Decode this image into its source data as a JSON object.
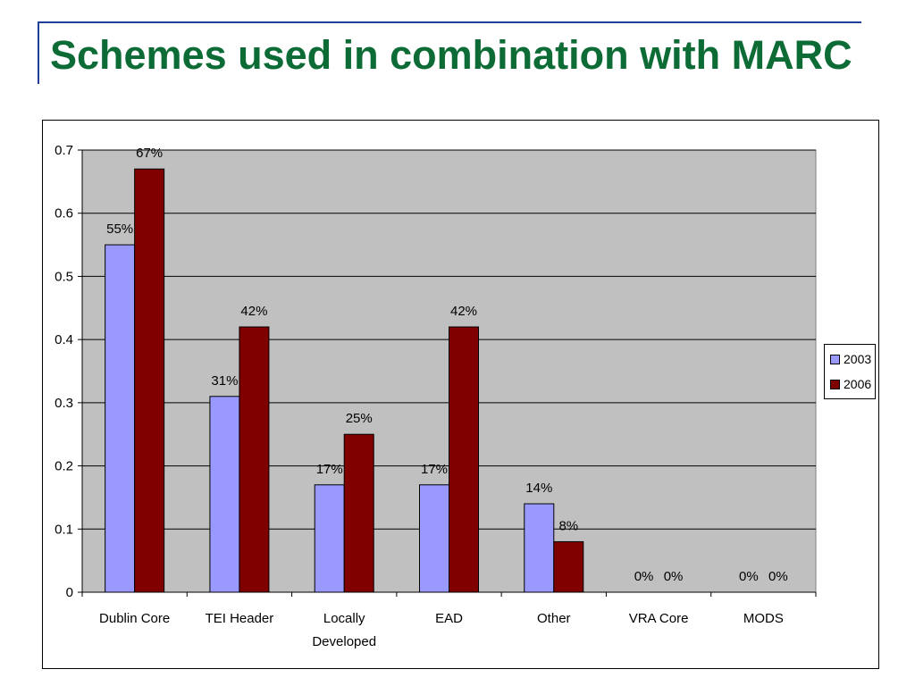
{
  "slide": {
    "title": "Schemes used in combination with MARC"
  },
  "colors": {
    "series_2003": "#9999ff",
    "series_2006": "#800000",
    "plot_background": "#c0c0c0",
    "title": "#0d6b36"
  },
  "chart_data": {
    "type": "bar",
    "categories": [
      "Dublin Core",
      "TEI Header",
      "Locally Developed",
      "EAD",
      "Other",
      "VRA Core",
      "MODS"
    ],
    "category_lines": [
      [
        "Dublin Core"
      ],
      [
        "TEI Header"
      ],
      [
        "Locally",
        "Developed"
      ],
      [
        "EAD"
      ],
      [
        "Other"
      ],
      [
        "VRA Core"
      ],
      [
        "MODS"
      ]
    ],
    "series": [
      {
        "name": "2003",
        "values": [
          0.55,
          0.31,
          0.17,
          0.17,
          0.14,
          0,
          0
        ],
        "labels": [
          "55%",
          "31%",
          "17%",
          "17%",
          "14%",
          "0%",
          "0%"
        ]
      },
      {
        "name": "2006",
        "values": [
          0.67,
          0.42,
          0.25,
          0.42,
          0.08,
          0,
          0
        ],
        "labels": [
          "67%",
          "42%",
          "25%",
          "42%",
          "8%",
          "0%",
          "0%"
        ]
      }
    ],
    "yticks": [
      "0",
      "0.1",
      "0.2",
      "0.3",
      "0.4",
      "0.5",
      "0.6",
      "0.7"
    ],
    "ylim": [
      0,
      0.7
    ],
    "grid": true,
    "legend": "right"
  }
}
